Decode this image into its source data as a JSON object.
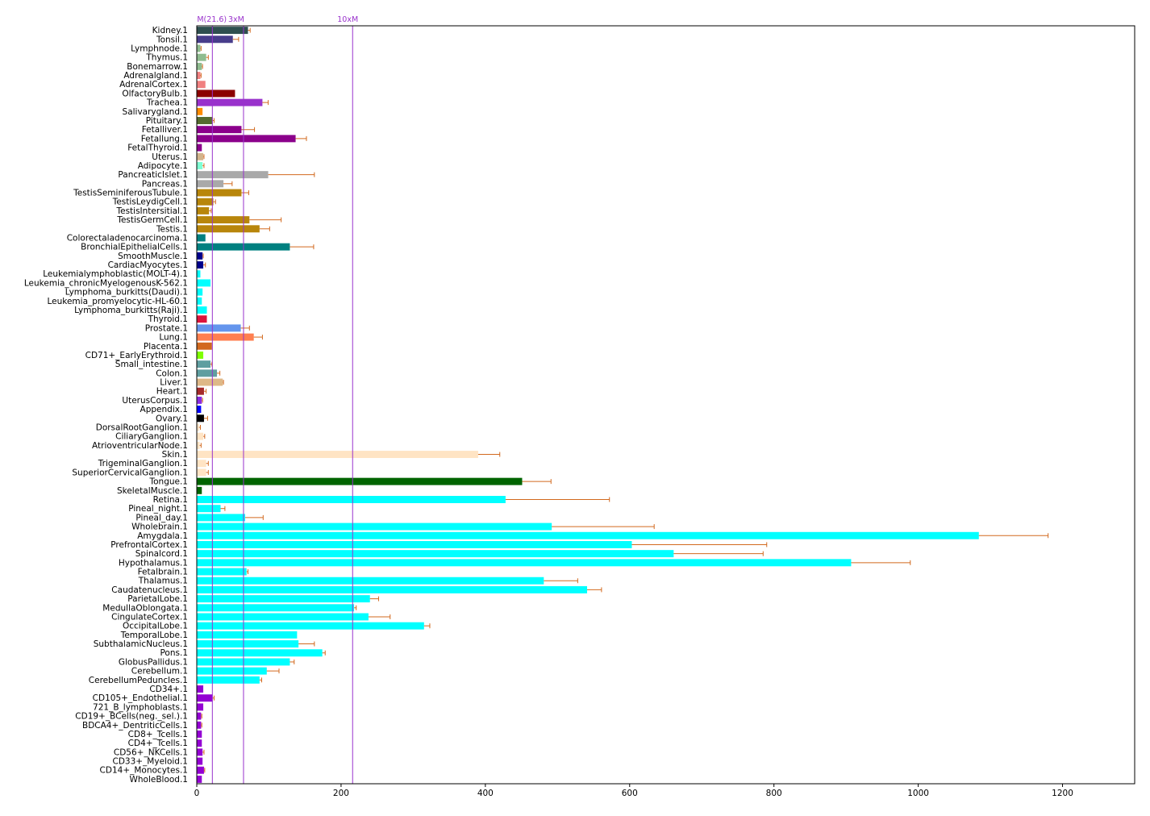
{
  "chart_data": {
    "type": "bar",
    "orientation": "horizontal",
    "xlim": [
      0,
      1300
    ],
    "x_ticks": [
      0,
      200,
      400,
      600,
      800,
      1000,
      1200
    ],
    "grid": false,
    "legend": "none",
    "error_bar_color": "#d2691e",
    "reference_lines": [
      {
        "label": "M(21.6)",
        "value": 21.6,
        "color": "#9932cc"
      },
      {
        "label": "3xM",
        "value": 64.8,
        "color": "#9932cc"
      },
      {
        "label": "10xM",
        "value": 216,
        "color": "#9932cc"
      }
    ],
    "bars": [
      {
        "label": "Kidney.1",
        "value": 71,
        "error": 3,
        "color": "#2f4f4f"
      },
      {
        "label": "Tonsil.1",
        "value": 50,
        "error": 8,
        "color": "#483d8b"
      },
      {
        "label": "Lymphnode.1",
        "value": 5,
        "error": 1,
        "color": "#8fbc8f"
      },
      {
        "label": "Thymus.1",
        "value": 13,
        "error": 3,
        "color": "#8fbc8f"
      },
      {
        "label": "Bonemarrow.1",
        "value": 7,
        "error": 1,
        "color": "#8fbc8f"
      },
      {
        "label": "Adrenalgland.1",
        "value": 5,
        "error": 1,
        "color": "#f08080"
      },
      {
        "label": "AdrenalCortex.1",
        "value": 12,
        "error": 0,
        "color": "#f08080"
      },
      {
        "label": "OlfactoryBulb.1",
        "value": 53,
        "error": 0,
        "color": "#8b0000"
      },
      {
        "label": "Trachea.1",
        "value": 91,
        "error": 8,
        "color": "#9932cc"
      },
      {
        "label": "Salivarygland.1",
        "value": 8,
        "error": 0,
        "color": "#ff8c00"
      },
      {
        "label": "Pituitary.1",
        "value": 22,
        "error": 2,
        "color": "#556b2f"
      },
      {
        "label": "Fetalliver.1",
        "value": 62,
        "error": 18,
        "color": "#8b008b"
      },
      {
        "label": "Fetallung.1",
        "value": 137,
        "error": 15,
        "color": "#8b008b"
      },
      {
        "label": "FetalThyroid.1",
        "value": 7,
        "error": 0,
        "color": "#8b008b"
      },
      {
        "label": "Uterus.1",
        "value": 9,
        "error": 1,
        "color": "#d2b48c"
      },
      {
        "label": "Adipocyte.1",
        "value": 8,
        "error": 2,
        "color": "#7fffd4"
      },
      {
        "label": "PancreaticIslet.1",
        "value": 99,
        "error": 64,
        "color": "#a9a9a9"
      },
      {
        "label": "Pancreas.1",
        "value": 37,
        "error": 12,
        "color": "#a9a9a9"
      },
      {
        "label": "TestisSeminiferousTubule.1",
        "value": 62,
        "error": 10,
        "color": "#b8860b"
      },
      {
        "label": "TestisLeydigCell.1",
        "value": 23,
        "error": 3,
        "color": "#b8860b"
      },
      {
        "label": "TestisIntersitial.1",
        "value": 17,
        "error": 3,
        "color": "#b8860b"
      },
      {
        "label": "TestisGermCell.1",
        "value": 73,
        "error": 44,
        "color": "#b8860b"
      },
      {
        "label": "Testis.1",
        "value": 87,
        "error": 14,
        "color": "#b8860b"
      },
      {
        "label": "Colorectaladenocarcinoma.1",
        "value": 12,
        "error": 0,
        "color": "#008080"
      },
      {
        "label": "BronchialEpithelialCells.1",
        "value": 129,
        "error": 33,
        "color": "#008080"
      },
      {
        "label": "SmoothMuscle.1",
        "value": 8,
        "error": 1,
        "color": "#00008b"
      },
      {
        "label": "CardiacMyocytes.1",
        "value": 9,
        "error": 3,
        "color": "#00008b"
      },
      {
        "label": "Leukemialymphoblastic(MOLT-4).1",
        "value": 5,
        "error": 0,
        "color": "#00ffff"
      },
      {
        "label": "Leukemia_chronicMyelogenousK-562.1",
        "value": 19,
        "error": 0,
        "color": "#00ffff"
      },
      {
        "label": "Lymphoma_burkitts(Daudi).1",
        "value": 8,
        "error": 0,
        "color": "#00ffff"
      },
      {
        "label": "Leukemia_promyelocytic-HL-60.1",
        "value": 7,
        "error": 0,
        "color": "#00ffff"
      },
      {
        "label": "Lymphoma_burkitts(Raji).1",
        "value": 14,
        "error": 0,
        "color": "#00ffff"
      },
      {
        "label": "Thyroid.1",
        "value": 14,
        "error": 0,
        "color": "#dc143c"
      },
      {
        "label": "Prostate.1",
        "value": 61,
        "error": 12,
        "color": "#6495ed"
      },
      {
        "label": "Lung.1",
        "value": 79,
        "error": 12,
        "color": "#ff7f50"
      },
      {
        "label": "Placenta.1",
        "value": 21,
        "error": 0,
        "color": "#d2691e"
      },
      {
        "label": "CD71+_EarlyErythroid.1",
        "value": 9,
        "error": 0,
        "color": "#7fff00"
      },
      {
        "label": "Small_intestine.1",
        "value": 19,
        "error": 2,
        "color": "#5f9ea0"
      },
      {
        "label": "Colon.1",
        "value": 28,
        "error": 4,
        "color": "#5f9ea0"
      },
      {
        "label": "Liver.1",
        "value": 36,
        "error": 1,
        "color": "#deb887"
      },
      {
        "label": "Heart.1",
        "value": 10,
        "error": 3,
        "color": "#a52a2a"
      },
      {
        "label": "UterusCorpus.1",
        "value": 7,
        "error": 1,
        "color": "#8a2be2"
      },
      {
        "label": "Appendix.1",
        "value": 6,
        "error": 0,
        "color": "#0000ff"
      },
      {
        "label": "Ovary.1",
        "value": 10,
        "error": 5,
        "color": "#000000"
      },
      {
        "label": "DorsalRootGanglion.1",
        "value": 3,
        "error": 2,
        "color": "#ffe4c4"
      },
      {
        "label": "CiliaryGanglion.1",
        "value": 9,
        "error": 2,
        "color": "#ffe4c4"
      },
      {
        "label": "AtrioventricularNode.1",
        "value": 4,
        "error": 2,
        "color": "#ffe4c4"
      },
      {
        "label": "Skin.1",
        "value": 390,
        "error": 30,
        "color": "#ffe4c4"
      },
      {
        "label": "TrigeminalGanglion.1",
        "value": 13,
        "error": 3,
        "color": "#ffe4c4"
      },
      {
        "label": "SuperiorCervicalGanglion.1",
        "value": 13,
        "error": 3,
        "color": "#ffe4c4"
      },
      {
        "label": "Tongue.1",
        "value": 451,
        "error": 40,
        "color": "#006400"
      },
      {
        "label": "SkeletalMuscle.1",
        "value": 7,
        "error": 0,
        "color": "#006400"
      },
      {
        "label": "Retina.1",
        "value": 428,
        "error": 144,
        "color": "#00ffff"
      },
      {
        "label": "Pineal_night.1",
        "value": 33,
        "error": 6,
        "color": "#00ffff"
      },
      {
        "label": "Pineal_day.1",
        "value": 67,
        "error": 25,
        "color": "#00ffff"
      },
      {
        "label": "Wholebrain.1",
        "value": 492,
        "error": 142,
        "color": "#00ffff"
      },
      {
        "label": "Amygdala.1",
        "value": 1084,
        "error": 96,
        "color": "#00ffff"
      },
      {
        "label": "PrefrontalCortex.1",
        "value": 603,
        "error": 187,
        "color": "#00ffff"
      },
      {
        "label": "Spinalcord.1",
        "value": 661,
        "error": 124,
        "color": "#00ffff"
      },
      {
        "label": "Hypothalamus.1",
        "value": 907,
        "error": 82,
        "color": "#00ffff"
      },
      {
        "label": "Fetalbrain.1",
        "value": 69,
        "error": 2,
        "color": "#00ffff"
      },
      {
        "label": "Thalamus.1",
        "value": 481,
        "error": 47,
        "color": "#00ffff"
      },
      {
        "label": "Caudatenucleus.1",
        "value": 541,
        "error": 20,
        "color": "#00ffff"
      },
      {
        "label": "ParietalLobe.1",
        "value": 240,
        "error": 12,
        "color": "#00ffff"
      },
      {
        "label": "MedullaOblongata.1",
        "value": 218,
        "error": 3,
        "color": "#00ffff"
      },
      {
        "label": "CingulateCortex.1",
        "value": 238,
        "error": 30,
        "color": "#00ffff"
      },
      {
        "label": "OccipitalLobe.1",
        "value": 315,
        "error": 8,
        "color": "#00ffff"
      },
      {
        "label": "TemporalLobe.1",
        "value": 139,
        "error": 0,
        "color": "#00ffff"
      },
      {
        "label": "SubthalamicNucleus.1",
        "value": 141,
        "error": 22,
        "color": "#00ffff"
      },
      {
        "label": "Pons.1",
        "value": 174,
        "error": 4,
        "color": "#00ffff"
      },
      {
        "label": "GlobusPallidus.1",
        "value": 129,
        "error": 6,
        "color": "#00ffff"
      },
      {
        "label": "Cerebellum.1",
        "value": 97,
        "error": 17,
        "color": "#00ffff"
      },
      {
        "label": "CerebellumPeduncles.1",
        "value": 87,
        "error": 3,
        "color": "#00ffff"
      },
      {
        "label": "CD34+.1",
        "value": 9,
        "error": 0,
        "color": "#9400d3"
      },
      {
        "label": "CD105+_Endothelial.1",
        "value": 22,
        "error": 2,
        "color": "#9400d3"
      },
      {
        "label": "721_B_lymphoblasts.1",
        "value": 9,
        "error": 0,
        "color": "#9400d3"
      },
      {
        "label": "CD19+_BCells(neg._sel.).1",
        "value": 6,
        "error": 1,
        "color": "#9400d3"
      },
      {
        "label": "BDCA4+_DentriticCells.1",
        "value": 6,
        "error": 1,
        "color": "#9400d3"
      },
      {
        "label": "CD8+_Tcells.1",
        "value": 7,
        "error": 0,
        "color": "#9400d3"
      },
      {
        "label": "CD4+_Tcells.1",
        "value": 7,
        "error": 0,
        "color": "#9400d3"
      },
      {
        "label": "CD56+_NKCells.1",
        "value": 8,
        "error": 2,
        "color": "#9400d3"
      },
      {
        "label": "CD33+_Myeloid.1",
        "value": 8,
        "error": 0,
        "color": "#9400d3"
      },
      {
        "label": "CD14+_Monocytes.1",
        "value": 10,
        "error": 1,
        "color": "#9400d3"
      },
      {
        "label": "WholeBlood.1",
        "value": 7,
        "error": 0,
        "color": "#9400d3"
      }
    ]
  }
}
